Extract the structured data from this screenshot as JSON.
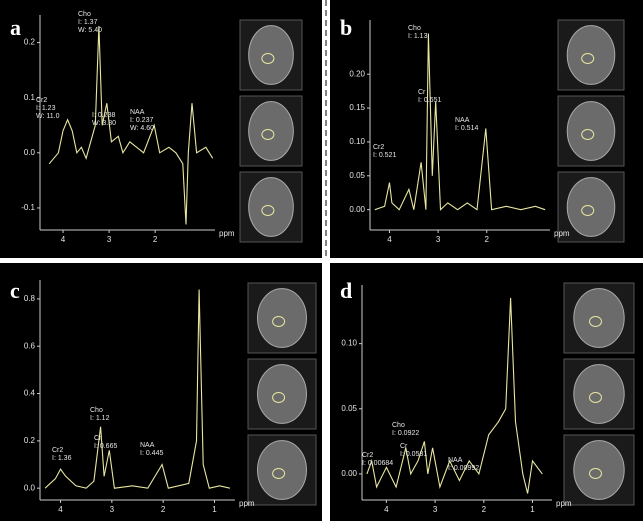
{
  "chart_data": [
    {
      "type": "line",
      "panel": "a",
      "color": "#e8e6a0",
      "x": [
        4.3,
        4.1,
        4.0,
        3.9,
        3.8,
        3.7,
        3.6,
        3.5,
        3.4,
        3.3,
        3.22,
        3.15,
        3.05,
        2.95,
        2.8,
        2.7,
        2.55,
        2.4,
        2.25,
        2.02,
        1.9,
        1.7,
        1.55,
        1.4,
        1.33,
        1.28,
        1.2,
        1.1,
        0.9,
        0.75
      ],
      "values": [
        -0.02,
        0.0,
        0.04,
        0.06,
        0.04,
        0.0,
        0.01,
        -0.01,
        0.02,
        0.05,
        0.23,
        0.05,
        0.09,
        0.02,
        0.03,
        0.0,
        0.02,
        0.01,
        0.0,
        0.05,
        0.0,
        0.01,
        0.0,
        -0.02,
        -0.13,
        0.0,
        0.09,
        0.0,
        0.01,
        -0.01
      ],
      "xlim": [
        4.5,
        0.7
      ],
      "xticks": [
        4,
        3,
        2
      ],
      "ylim": [
        -0.14,
        0.25
      ],
      "yticks": [
        -0.1,
        {
          "value": 0,
          "label": "0.0"
        },
        0.1,
        0.2
      ],
      "x_label": "ppm",
      "annotations": [
        {
          "lines": [
            "Cho",
            "I: 1.37",
            "W: 5.40"
          ]
        },
        {
          "lines": [
            "Cr2",
            "I: 1.23",
            "W: 11.0"
          ]
        },
        {
          "lines": [
            "I: 0.238",
            "W: 3.80"
          ]
        },
        {
          "lines": [
            "NAA",
            "I: 0.237",
            "W: 4.60"
          ]
        }
      ]
    },
    {
      "type": "line",
      "panel": "b",
      "color": "#e8e6a0",
      "x": [
        4.3,
        4.1,
        4.0,
        3.95,
        3.8,
        3.6,
        3.5,
        3.35,
        3.25,
        3.2,
        3.12,
        3.05,
        2.95,
        2.8,
        2.6,
        2.4,
        2.2,
        2.02,
        1.9,
        1.6,
        1.3,
        1.0,
        0.8
      ],
      "values": [
        0.0,
        0.005,
        0.04,
        0.01,
        0.0,
        0.03,
        0.0,
        0.07,
        0.0,
        0.26,
        0.05,
        0.16,
        0.0,
        0.01,
        0.0,
        0.01,
        0.0,
        0.12,
        0.0,
        0.005,
        0.0,
        0.005,
        0.0
      ],
      "xlim": [
        4.4,
        0.7
      ],
      "xticks": [
        4,
        3,
        2
      ],
      "ylim": [
        -0.03,
        0.28
      ],
      "yticks": [
        {
          "value": 0,
          "label": "0.00"
        },
        0.05,
        {
          "value": 0.1,
          "label": "0.10"
        },
        0.15,
        {
          "value": 0.2,
          "label": "0.20"
        }
      ],
      "x_label": "ppm",
      "annotations": [
        {
          "lines": [
            "Cho",
            "I: 1.13"
          ]
        },
        {
          "lines": [
            "Cr",
            "I: 0.651"
          ]
        },
        {
          "lines": [
            "NAA",
            "I: 0.514"
          ]
        },
        {
          "lines": [
            "Cr2",
            "I: 0.521"
          ]
        }
      ]
    },
    {
      "type": "line",
      "panel": "c",
      "color": "#e8e6a0",
      "x": [
        4.3,
        4.1,
        4.0,
        3.9,
        3.7,
        3.5,
        3.35,
        3.22,
        3.15,
        3.05,
        2.95,
        2.6,
        2.3,
        2.02,
        1.9,
        1.5,
        1.35,
        1.3,
        1.22,
        1.1,
        0.9,
        0.7
      ],
      "values": [
        0.0,
        0.04,
        0.08,
        0.05,
        0.01,
        0.0,
        0.03,
        0.26,
        0.05,
        0.16,
        0.0,
        0.01,
        0.0,
        0.1,
        0.0,
        0.02,
        0.2,
        0.84,
        0.1,
        0.0,
        0.01,
        0.0
      ],
      "xlim": [
        4.4,
        0.6
      ],
      "xticks": [
        4,
        3,
        2,
        1
      ],
      "ylim": [
        -0.05,
        0.88
      ],
      "yticks": [
        {
          "value": 0,
          "label": "0.0"
        },
        0.2,
        0.4,
        0.6,
        0.8
      ],
      "x_label": "ppm",
      "annotations": [
        {
          "lines": [
            "Cr2",
            "I: 1.36"
          ]
        },
        {
          "lines": [
            "Cho",
            "I: 1.12"
          ]
        },
        {
          "lines": [
            "Cr",
            "I: 0.665"
          ]
        },
        {
          "lines": [
            "NAA",
            "I: 0.445"
          ]
        }
      ]
    },
    {
      "type": "line",
      "panel": "d",
      "color": "#e8e6a0",
      "x": [
        4.4,
        4.3,
        4.2,
        4.0,
        3.8,
        3.6,
        3.5,
        3.35,
        3.22,
        3.15,
        3.05,
        2.9,
        2.7,
        2.5,
        2.3,
        2.1,
        1.9,
        1.7,
        1.55,
        1.45,
        1.35,
        1.2,
        1.1,
        1.0,
        0.8
      ],
      "values": [
        0.0,
        0.01,
        -0.01,
        0.005,
        -0.01,
        0.02,
        0.0,
        0.01,
        0.025,
        0.0,
        0.02,
        -0.01,
        0.01,
        -0.005,
        0.01,
        0.0,
        0.03,
        0.04,
        0.05,
        0.135,
        0.04,
        0.0,
        -0.015,
        0.01,
        0.0
      ],
      "xlim": [
        4.5,
        0.6
      ],
      "xticks": [
        4,
        3,
        2,
        1
      ],
      "ylim": [
        -0.02,
        0.145
      ],
      "yticks": [
        {
          "value": 0,
          "label": "0.00"
        },
        0.05,
        {
          "value": 0.1,
          "label": "0.10"
        }
      ],
      "x_label": "ppm",
      "annotations": [
        {
          "lines": [
            "Cr2",
            "I: 0.00684"
          ]
        },
        {
          "lines": [
            "Cho",
            "I: 0.0922"
          ]
        },
        {
          "lines": [
            "Cr",
            "I: 0.0581"
          ]
        },
        {
          "lines": [
            "NAA",
            "I: 0.00992"
          ]
        }
      ]
    }
  ]
}
